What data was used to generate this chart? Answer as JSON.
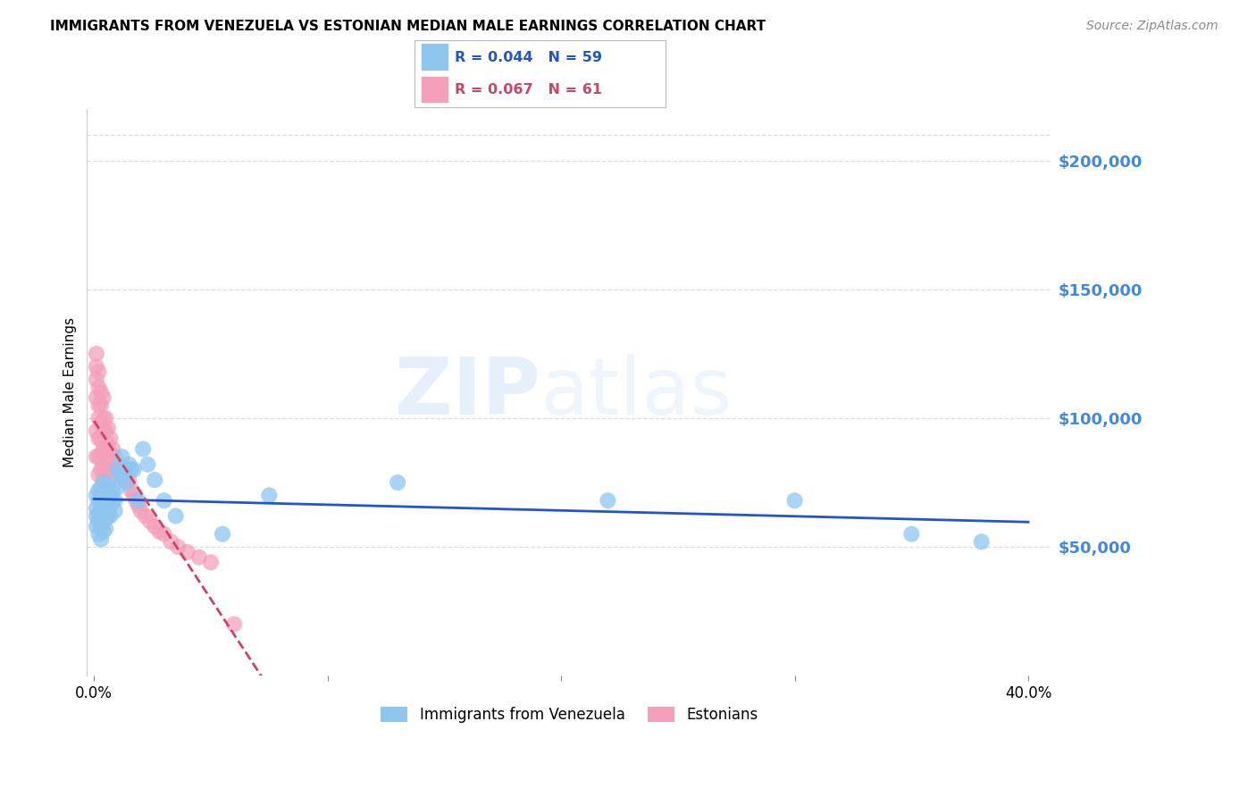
{
  "title": "IMMIGRANTS FROM VENEZUELA VS ESTONIAN MEDIAN MALE EARNINGS CORRELATION CHART",
  "source": "Source: ZipAtlas.com",
  "ylabel": "Median Male Earnings",
  "ytick_labels": [
    "$50,000",
    "$100,000",
    "$150,000",
    "$200,000"
  ],
  "ytick_values": [
    50000,
    100000,
    150000,
    200000
  ],
  "ymin": 0,
  "ymax": 220000,
  "xmin": -0.003,
  "xmax": 0.41,
  "watermark_zip": "ZIP",
  "watermark_atlas": "atlas",
  "color_blue": "#8ec6f0",
  "color_pink": "#f4a0bb",
  "trendline_blue_color": "#2255cc",
  "trendline_pink_color": "#cc4466",
  "right_tick_color": "#4488dd",
  "background_color": "#ffffff",
  "grid_color": "#dddddd",
  "legend_r1_color": "#2255cc",
  "legend_r2_color": "#cc4466",
  "blue_x": [
    0.001,
    0.001,
    0.001,
    0.001,
    0.002,
    0.002,
    0.002,
    0.002,
    0.002,
    0.003,
    0.003,
    0.003,
    0.003,
    0.003,
    0.003,
    0.004,
    0.004,
    0.004,
    0.004,
    0.004,
    0.004,
    0.005,
    0.005,
    0.005,
    0.005,
    0.005,
    0.006,
    0.006,
    0.006,
    0.006,
    0.007,
    0.007,
    0.007,
    0.008,
    0.008,
    0.009,
    0.009,
    0.01,
    0.01,
    0.011,
    0.012,
    0.013,
    0.014,
    0.015,
    0.016,
    0.017,
    0.019,
    0.021,
    0.023,
    0.026,
    0.03,
    0.035,
    0.055,
    0.075,
    0.13,
    0.22,
    0.3,
    0.35,
    0.38
  ],
  "blue_y": [
    70000,
    65000,
    62000,
    58000,
    72000,
    68000,
    63000,
    60000,
    55000,
    73000,
    68000,
    65000,
    62000,
    58000,
    53000,
    75000,
    70000,
    67000,
    63000,
    60000,
    56000,
    72000,
    68000,
    65000,
    61000,
    57000,
    74000,
    70000,
    66000,
    62000,
    70000,
    66000,
    62000,
    72000,
    68000,
    68000,
    64000,
    80000,
    73000,
    78000,
    85000,
    78000,
    75000,
    82000,
    80000,
    80000,
    68000,
    88000,
    82000,
    76000,
    68000,
    62000,
    55000,
    70000,
    75000,
    68000,
    68000,
    55000,
    52000
  ],
  "pink_x": [
    0.001,
    0.001,
    0.001,
    0.001,
    0.001,
    0.001,
    0.002,
    0.002,
    0.002,
    0.002,
    0.002,
    0.002,
    0.002,
    0.003,
    0.003,
    0.003,
    0.003,
    0.003,
    0.003,
    0.004,
    0.004,
    0.004,
    0.004,
    0.004,
    0.004,
    0.005,
    0.005,
    0.005,
    0.005,
    0.006,
    0.006,
    0.006,
    0.007,
    0.007,
    0.007,
    0.008,
    0.008,
    0.009,
    0.009,
    0.01,
    0.011,
    0.012,
    0.013,
    0.014,
    0.015,
    0.016,
    0.017,
    0.018,
    0.019,
    0.02,
    0.022,
    0.024,
    0.026,
    0.028,
    0.03,
    0.033,
    0.036,
    0.04,
    0.045,
    0.05,
    0.06
  ],
  "pink_y": [
    125000,
    120000,
    115000,
    108000,
    95000,
    85000,
    118000,
    112000,
    105000,
    100000,
    92000,
    85000,
    78000,
    110000,
    105000,
    98000,
    92000,
    86000,
    80000,
    108000,
    100000,
    95000,
    88000,
    82000,
    76000,
    100000,
    95000,
    88000,
    82000,
    96000,
    90000,
    84000,
    92000,
    86000,
    80000,
    88000,
    82000,
    85000,
    78000,
    82000,
    80000,
    78000,
    76000,
    80000,
    76000,
    72000,
    70000,
    68000,
    66000,
    64000,
    62000,
    60000,
    58000,
    56000,
    55000,
    52000,
    50000,
    48000,
    46000,
    44000,
    20000
  ]
}
